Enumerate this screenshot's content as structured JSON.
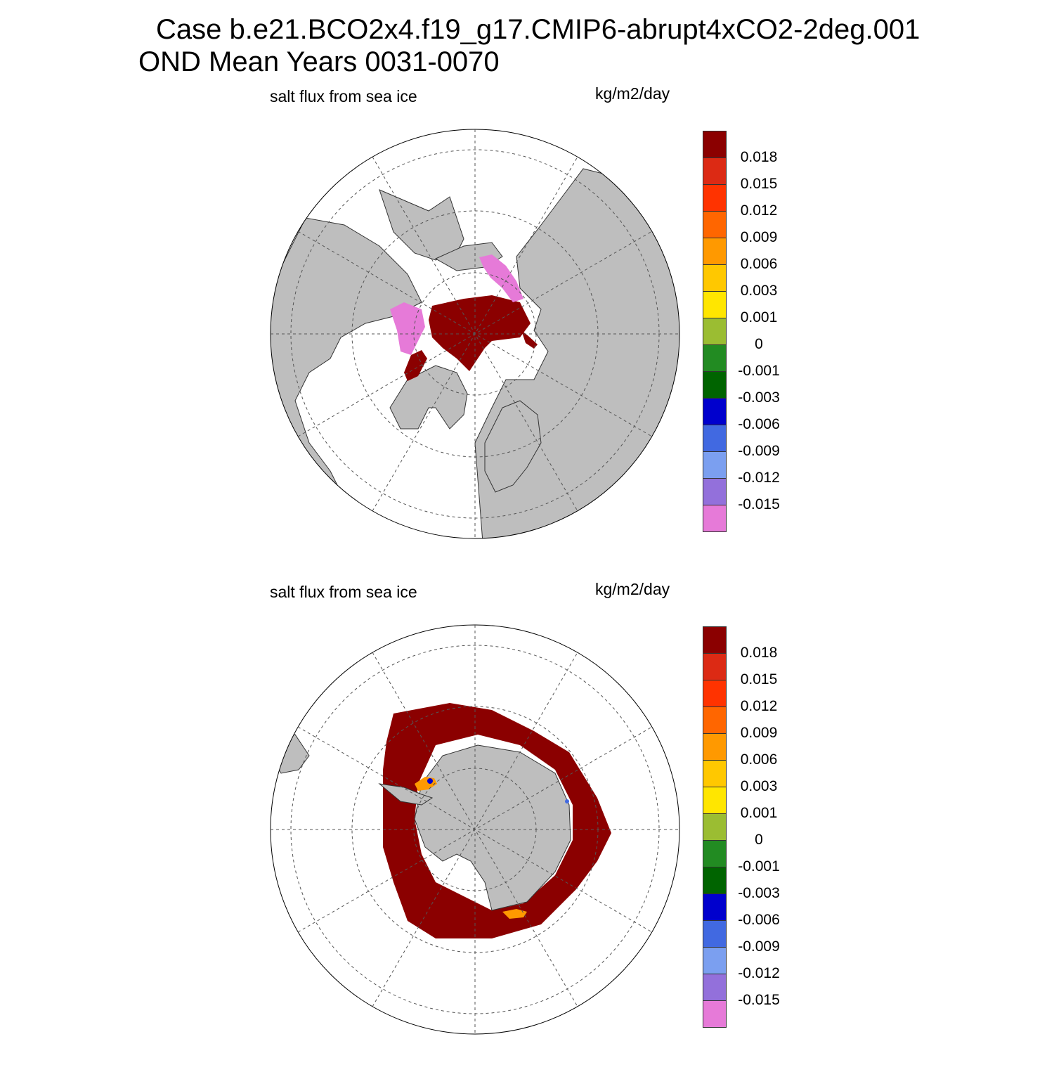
{
  "figure": {
    "title_line_1": "Case b.e21.BCO2x4.f19_g17.CMIP6-abrupt4xCO2-2deg.001",
    "title_line_2": "OND Mean   Years 0031-0070"
  },
  "panels": [
    {
      "id": "north",
      "variable_label": "salt flux from sea ice",
      "units_label": "kg/m2/day",
      "hemisphere": "Northern Hemisphere polar stereographic"
    },
    {
      "id": "south",
      "variable_label": "salt flux from sea ice",
      "units_label": "kg/m2/day",
      "hemisphere": "Southern Hemisphere polar stereographic"
    }
  ],
  "colorbar": {
    "tick_labels": [
      "0.018",
      "0.015",
      "0.012",
      "0.009",
      "0.006",
      "0.003",
      "0.001",
      "0",
      "-0.001",
      "-0.003",
      "-0.006",
      "-0.009",
      "-0.012",
      "-0.015"
    ],
    "colors": [
      "#8b0000",
      "#dc2a14",
      "#ff3300",
      "#ff6600",
      "#ff9900",
      "#ffc800",
      "#ffe600",
      "#9bbd32",
      "#228b22",
      "#006400",
      "#0000cd",
      "#4169e1",
      "#7b9ff0",
      "#9370db",
      "#e67ad8"
    ]
  },
  "colors": {
    "land": "#bebebe",
    "ocean": "#ffffff",
    "grid": "#555555"
  }
}
